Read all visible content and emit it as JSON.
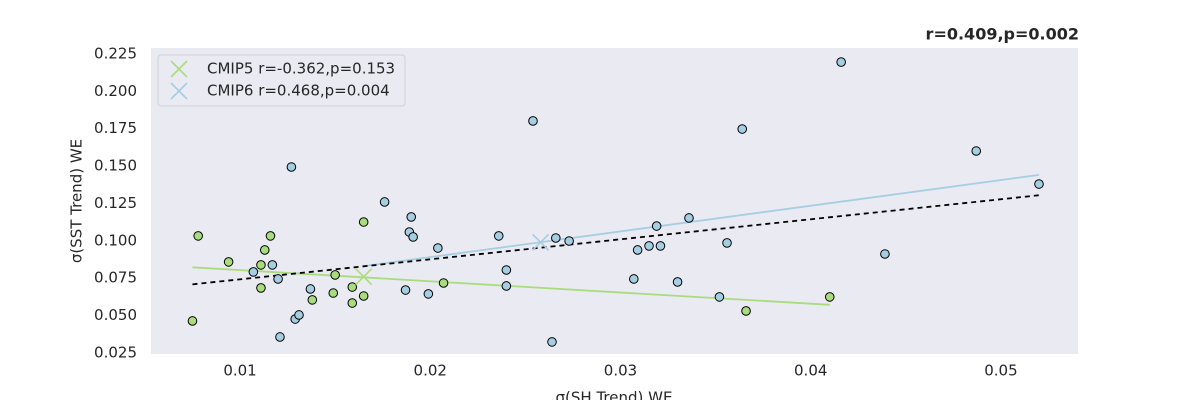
{
  "chart_data": {
    "type": "scatter",
    "title": "r=0.409,p=0.002",
    "xlabel": "σ(SH Trend) WE",
    "ylabel": "σ(SST Trend) WE",
    "xlim": [
      0.00532,
      0.05405
    ],
    "ylim": [
      0.0243,
      0.229
    ],
    "xticks": [
      0.01,
      0.02,
      0.03,
      0.04,
      0.05
    ],
    "yticks": [
      {
        "value": 0.025,
        "label": "0.025"
      },
      {
        "value": 0.05,
        "label": "0.050"
      },
      {
        "value": 0.075,
        "label": "0.075"
      },
      {
        "value": 0.1,
        "label": "0.100"
      },
      {
        "value": 0.125,
        "label": "0.125"
      },
      {
        "value": 0.15,
        "label": "0.150"
      },
      {
        "value": 0.175,
        "label": "0.175"
      },
      {
        "value": 0.2,
        "label": "0.200"
      },
      {
        "value": 0.225,
        "label": "0.225"
      }
    ],
    "grid": false,
    "legend": "upper left",
    "background": "#eaeaf2",
    "series": [
      {
        "name": "CMIP5 r=-0.362,p=0.153",
        "color": "#a9dc7c",
        "x": [
          0.0075,
          0.0078,
          0.0094,
          0.0111,
          0.0113,
          0.0116,
          0.0111,
          0.0138,
          0.0149,
          0.015,
          0.0159,
          0.0165,
          0.0165,
          0.0159,
          0.0207,
          0.041,
          0.0366
        ],
        "values": [
          0.0464,
          0.1033,
          0.0859,
          0.0839,
          0.0939,
          0.1033,
          0.0685,
          0.0605,
          0.0651,
          0.0772,
          0.0584,
          0.0631,
          0.1126,
          0.0691,
          0.0718,
          0.0625,
          0.0531
        ],
        "mean_x": 0.0165,
        "mean_y": 0.076,
        "fit_x": [
          0.0075,
          0.041
        ],
        "fit_values": [
          0.0823,
          0.0572
        ]
      },
      {
        "name": "CMIP6 r=0.468,p=0.004",
        "color": "#a6cee3",
        "x": [
          0.0107,
          0.0117,
          0.012,
          0.0127,
          0.0129,
          0.0131,
          0.0121,
          0.0137,
          0.0176,
          0.019,
          0.0189,
          0.0191,
          0.0187,
          0.0199,
          0.0204,
          0.0236,
          0.024,
          0.024,
          0.0254,
          0.0264,
          0.0266,
          0.0273,
          0.0307,
          0.0309,
          0.0315,
          0.0319,
          0.0321,
          0.033,
          0.0336,
          0.0352,
          0.0356,
          0.0364,
          0.0416,
          0.0439,
          0.0487,
          0.052
        ],
        "values": [
          0.0792,
          0.0839,
          0.0745,
          0.1494,
          0.0477,
          0.0504,
          0.0357,
          0.0678,
          0.126,
          0.116,
          0.1059,
          0.1026,
          0.0671,
          0.0645,
          0.0952,
          0.1033,
          0.0805,
          0.0698,
          0.1802,
          0.0324,
          0.1019,
          0.0999,
          0.0745,
          0.0939,
          0.0966,
          0.1099,
          0.0966,
          0.0725,
          0.1153,
          0.0625,
          0.0986,
          0.1748,
          0.2196,
          0.0912,
          0.1601,
          0.138
        ],
        "mean_x": 0.0258,
        "mean_y": 0.099,
        "fit_x": [
          0.0165,
          0.052
        ],
        "fit_values": [
          0.0831,
          0.1441
        ]
      }
    ],
    "overall_fit": {
      "color": "#000000",
      "x": [
        0.0075,
        0.052
      ],
      "values": [
        0.0709,
        0.1305
      ]
    }
  }
}
